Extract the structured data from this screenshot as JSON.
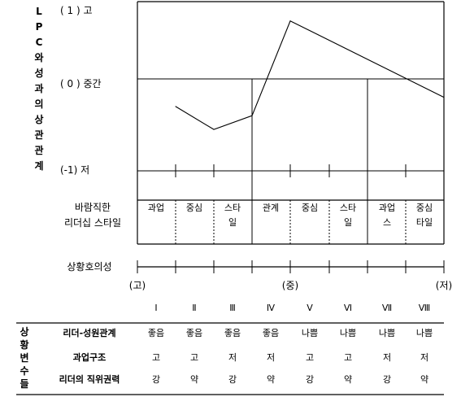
{
  "y_axis": {
    "vertical_title_chars": [
      "L",
      "P",
      "C",
      "와",
      "성",
      "과",
      "의",
      "상",
      "관",
      "관",
      "계"
    ],
    "labels": {
      "high": "( 1 ) 고",
      "mid": "( 0 ) 중간",
      "low": "(-1) 저"
    }
  },
  "chart_data": {
    "type": "line",
    "x": [
      "Ⅱ",
      "Ⅲ",
      "Ⅳ",
      "Ⅴ",
      "Ⅷ"
    ],
    "y": [
      -0.3,
      -0.55,
      -0.4,
      0.75,
      -0.2
    ],
    "ylim": [
      -1,
      1
    ],
    "yticks": [
      1,
      0,
      -1
    ]
  },
  "styles": {
    "label": "바람직한\n리더십 스타일",
    "label_line1": "바람직한",
    "label_line2": "리더십 스타일",
    "cells": [
      "과업",
      "중심",
      "스타\n일",
      "관계",
      "중심",
      "스타\n일",
      "과업\n스",
      "중심\n타일"
    ]
  },
  "favorability": {
    "label": "상황호의성",
    "ticks": {
      "high": "(고)",
      "mid": "(중)",
      "low": "(저)"
    }
  },
  "situations": {
    "side_label_chars": [
      "상",
      "황",
      "변",
      "수",
      "들"
    ],
    "numerals": [
      "Ⅰ",
      "Ⅱ",
      "Ⅲ",
      "Ⅳ",
      "Ⅴ",
      "Ⅵ",
      "Ⅶ",
      "Ⅷ"
    ],
    "rows": [
      {
        "label": "리더-성원관계",
        "values": [
          "좋음",
          "좋음",
          "좋음",
          "좋음",
          "나쁨",
          "나쁨",
          "나쁨",
          "나쁨"
        ]
      },
      {
        "label": "과업구조",
        "values": [
          "고",
          "고",
          "저",
          "저",
          "고",
          "고",
          "저",
          "저"
        ]
      },
      {
        "label": "리더의 직위권력",
        "values": [
          "강",
          "약",
          "강",
          "약",
          "강",
          "약",
          "강",
          "약"
        ]
      }
    ]
  }
}
